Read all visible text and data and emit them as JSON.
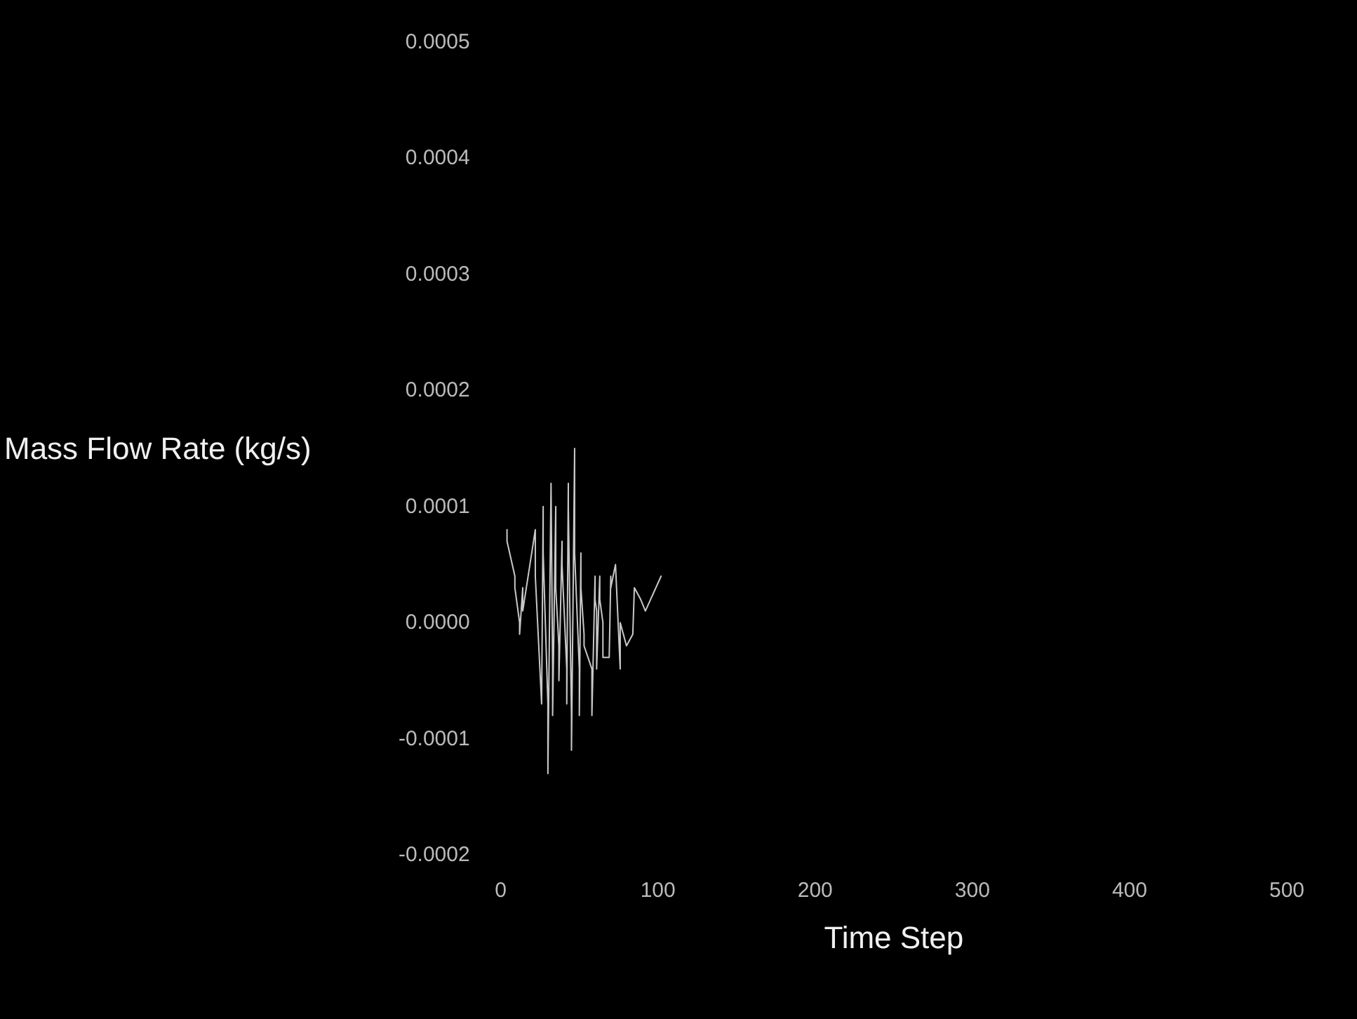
{
  "chart_data": {
    "type": "line",
    "xlabel": "Time Step",
    "ylabel": "Mass Flow Rate (kg/s)",
    "series": [
      {
        "color": "#c8c8c8",
        "x": [
          4,
          4,
          9,
          9,
          12,
          12,
          14,
          14,
          22,
          22,
          26,
          27,
          27,
          30,
          30,
          32,
          33,
          33,
          35,
          35,
          37,
          37,
          39,
          39,
          42,
          42,
          43,
          43,
          45,
          45,
          47,
          47,
          50,
          50,
          51,
          51,
          53,
          53,
          58,
          58,
          60,
          60,
          61,
          61,
          63,
          63,
          65,
          65,
          69,
          70,
          70,
          73,
          76,
          76,
          80,
          84,
          85,
          89,
          92,
          102
        ],
        "values": [
          8e-05,
          7e-05,
          4e-05,
          3e-05,
          0,
          -1e-05,
          3e-05,
          1e-05,
          8e-05,
          4e-05,
          -7e-05,
          0.0001,
          6e-05,
          -7e-05,
          -0.00013,
          0.00012,
          -4e-05,
          -8e-05,
          0.0001,
          3e-05,
          -2e-05,
          -5e-05,
          7e-05,
          5e-05,
          -4e-05,
          -7e-05,
          0.00012,
          0.0001,
          -8e-05,
          -0.00011,
          0.00015,
          6e-05,
          -4e-05,
          -8e-05,
          6e-05,
          3e-05,
          -1e-05,
          -2e-05,
          -4e-05,
          -8e-05,
          4e-05,
          2e-05,
          1e-05,
          -4e-05,
          4e-05,
          2e-05,
          0,
          -3e-05,
          -3e-05,
          4e-05,
          3e-05,
          5e-05,
          -4e-05,
          0,
          -2e-05,
          -1e-05,
          3e-05,
          2e-05,
          1e-05,
          4e-05
        ]
      }
    ],
    "xlim": [
      0,
      500
    ],
    "xticks": [
      0,
      100,
      200,
      300,
      400,
      500
    ],
    "ylim": [
      -0.0002,
      0.0005
    ],
    "yticks": [
      {
        "value": -0.0002,
        "label": "-0.0002"
      },
      {
        "value": -0.0001,
        "label": "-0.0001"
      },
      {
        "value": 0,
        "label": "0.0000"
      },
      {
        "value": 0.0001,
        "label": "0.0001"
      },
      {
        "value": 0.0002,
        "label": "0.0002"
      },
      {
        "value": 0.0003,
        "label": "0.0003"
      },
      {
        "value": 0.0004,
        "label": "0.0004"
      },
      {
        "value": 0.0005,
        "label": "0.0005"
      }
    ],
    "grid": false,
    "marker": "none",
    "line_style": "solid"
  }
}
